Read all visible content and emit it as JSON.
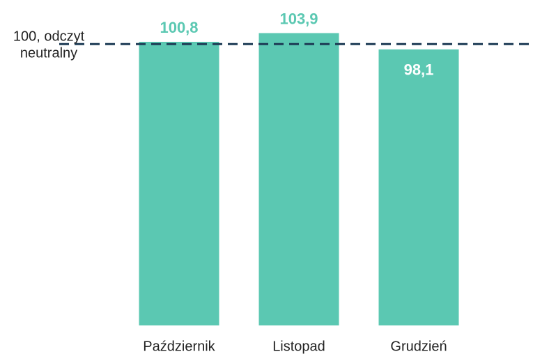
{
  "chart_data": {
    "type": "bar",
    "categories": [
      "Październik",
      "Listopad",
      "Grudzień"
    ],
    "values": [
      100.8,
      103.9,
      98.1
    ],
    "value_labels": [
      "100,8",
      "103,9",
      "98,1"
    ],
    "color": "#5bc8b2",
    "ylim": [
      0,
      110
    ],
    "reference_line": {
      "value": 100,
      "label_lines": [
        "100, odczyt",
        "neutralny"
      ],
      "color": "#1d3b55"
    }
  }
}
